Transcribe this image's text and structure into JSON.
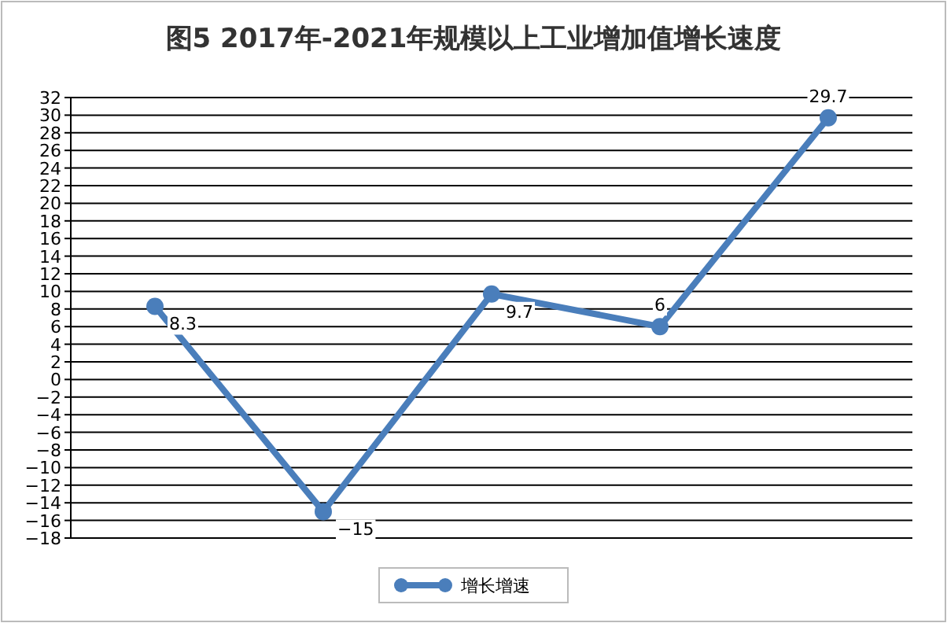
{
  "chart_data": {
    "type": "line",
    "title": "图5  2017年-2021年规模以上工业增加值增长速度",
    "categories": [
      null,
      null,
      null,
      null,
      null
    ],
    "series": [
      {
        "name": "增长增速",
        "color": "#4a7ebb",
        "values": [
          8.3,
          -15,
          9.7,
          6,
          29.7
        ]
      }
    ],
    "ylim": [
      -18,
      32
    ],
    "yticks": [
      -18,
      -16,
      -14,
      -12,
      -10,
      -8,
      -6,
      -4,
      -2,
      0,
      2,
      4,
      6,
      8,
      10,
      12,
      14,
      16,
      18,
      20,
      22,
      24,
      26,
      28,
      30,
      32
    ],
    "grid": "y",
    "legend": "bottom",
    "marker": "circle",
    "line_style": "solid",
    "data_labels": true
  }
}
